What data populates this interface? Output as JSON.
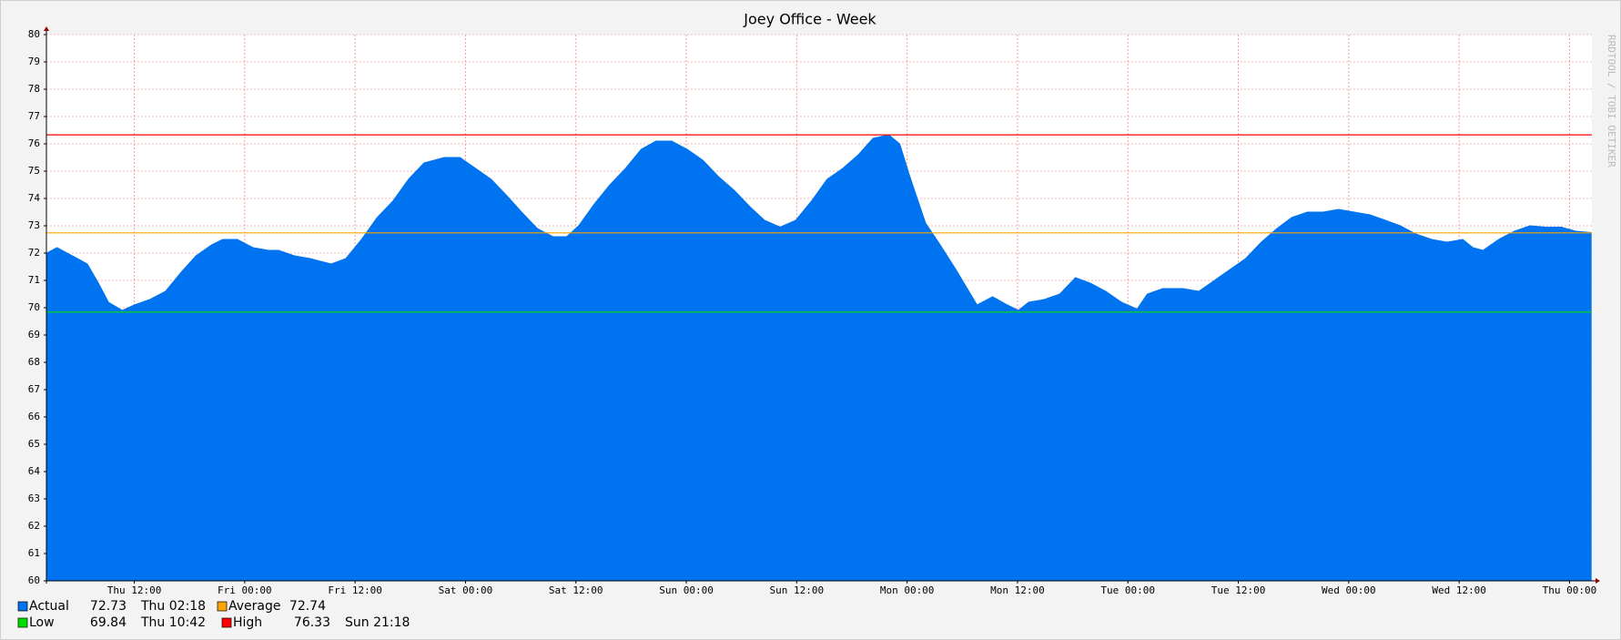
{
  "chart_data": {
    "type": "area",
    "title": "Joey Office - Week",
    "watermark": "RRDTOOL / TOBI OETIKER",
    "x": [
      2.5,
      3.6,
      4.7,
      5.8,
      6.9,
      8.1,
      9.2,
      10.7,
      12.0,
      13.7,
      15.4,
      17.1,
      18.7,
      20.4,
      21.6,
      23.2,
      24.9,
      26.6,
      27.7,
      29.4,
      31.1,
      33.4,
      35.0,
      36.7,
      38.4,
      40.1,
      41.8,
      43.5,
      45.7,
      47.4,
      49.1,
      50.8,
      52.5,
      54.1,
      55.8,
      57.5,
      59.0,
      60.3,
      62.0,
      63.7,
      65.4,
      67.1,
      68.7,
      70.4,
      72.1,
      73.8,
      75.5,
      77.2,
      78.9,
      80.5,
      82.2,
      83.9,
      85.6,
      87.3,
      89.0,
      90.7,
      92.3,
      94.0,
      95.2,
      96.3,
      98.0,
      99.6,
      101.3,
      103.6,
      105.3,
      106.9,
      108.1,
      109.2,
      110.9,
      112.6,
      114.3,
      115.9,
      117.6,
      119.3,
      121.0,
      122.1,
      123.8,
      126.0,
      127.7,
      129.4,
      131.1,
      132.8,
      134.5,
      136.2,
      137.8,
      139.5,
      141.2,
      142.9,
      144.6,
      146.3,
      148.0,
      149.6,
      151.3,
      153.0,
      154.7,
      156.4,
      157.5,
      158.6,
      160.3,
      162.0,
      163.7,
      165.4,
      167.1,
      168.7,
      170.4
    ],
    "series": [
      {
        "name": "Actual",
        "color": "#0073f0",
        "last": 72.73,
        "last_time": "Thu 02:18",
        "values": [
          72.0,
          72.2,
          72.0,
          71.8,
          71.6,
          70.9,
          70.2,
          69.9,
          70.1,
          70.3,
          70.6,
          71.3,
          71.9,
          72.3,
          72.5,
          72.5,
          72.2,
          72.1,
          72.1,
          71.9,
          71.8,
          71.6,
          71.8,
          72.5,
          73.3,
          73.9,
          74.7,
          75.3,
          75.5,
          75.5,
          75.1,
          74.7,
          74.1,
          73.5,
          72.9,
          72.6,
          72.6,
          73.0,
          73.8,
          74.5,
          75.1,
          75.8,
          76.1,
          76.1,
          75.8,
          75.4,
          74.8,
          74.3,
          73.7,
          73.2,
          72.95,
          73.2,
          73.9,
          74.7,
          75.1,
          75.6,
          76.2,
          76.33,
          76.0,
          74.8,
          73.1,
          72.3,
          71.4,
          70.1,
          70.4,
          70.1,
          69.9,
          70.2,
          70.3,
          70.5,
          71.1,
          70.9,
          70.6,
          70.2,
          69.95,
          70.5,
          70.7,
          70.7,
          70.6,
          71.0,
          71.4,
          71.8,
          72.4,
          72.9,
          73.3,
          73.5,
          73.5,
          73.6,
          73.5,
          73.4,
          73.2,
          73.0,
          72.7,
          72.5,
          72.4,
          72.5,
          72.2,
          72.1,
          72.5,
          72.8,
          73.0,
          72.95,
          72.95,
          72.8,
          72.75
        ]
      }
    ],
    "hlines": [
      {
        "name": "Average",
        "color": "#ffa500",
        "value": 72.74
      },
      {
        "name": "Low",
        "color": "#00e000",
        "value": 69.84,
        "time": "Thu 10:42"
      },
      {
        "name": "High",
        "color": "#ff0000",
        "value": 76.33,
        "time": "Sun 21:18"
      }
    ],
    "xlim": [
      2.45,
      170.43
    ],
    "xticks": [
      {
        "value": 12,
        "label": "Thu 12:00"
      },
      {
        "value": 24,
        "label": "Fri 00:00"
      },
      {
        "value": 36,
        "label": "Fri 12:00"
      },
      {
        "value": 48,
        "label": "Sat 00:00"
      },
      {
        "value": 60,
        "label": "Sat 12:00"
      },
      {
        "value": 72,
        "label": "Sun 00:00"
      },
      {
        "value": 84,
        "label": "Sun 12:00"
      },
      {
        "value": 96,
        "label": "Mon 00:00"
      },
      {
        "value": 108,
        "label": "Mon 12:00"
      },
      {
        "value": 120,
        "label": "Tue 00:00"
      },
      {
        "value": 132,
        "label": "Tue 12:00"
      },
      {
        "value": 144,
        "label": "Wed 00:00"
      },
      {
        "value": 156,
        "label": "Wed 12:00"
      },
      {
        "value": 168,
        "label": "Thu 00:00"
      }
    ],
    "ylim": [
      60,
      80
    ],
    "yticks": [
      60,
      61,
      62,
      63,
      64,
      65,
      66,
      67,
      68,
      69,
      70,
      71,
      72,
      73,
      74,
      75,
      76,
      77,
      78,
      79,
      80
    ],
    "grid": true
  }
}
